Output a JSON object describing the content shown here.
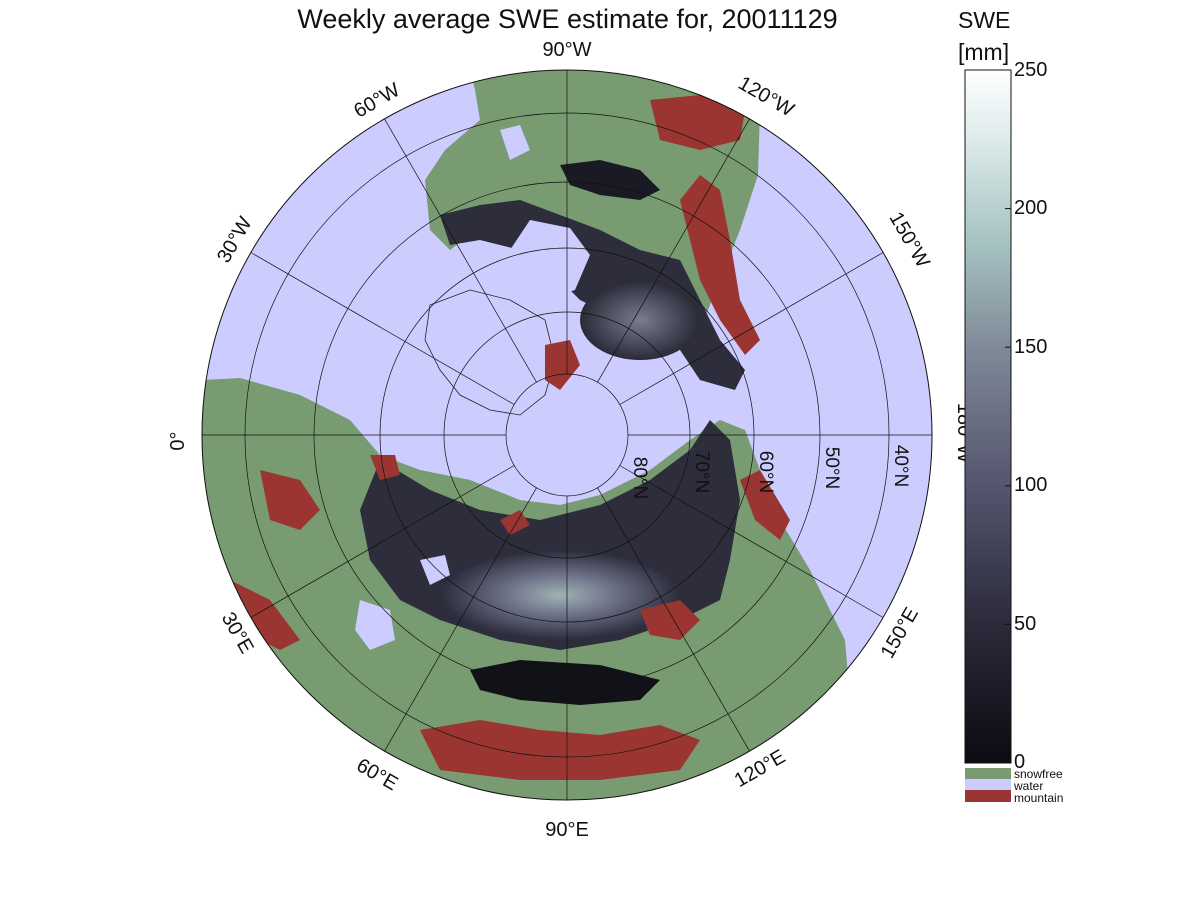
{
  "title": "Weekly average SWE estimate for, 20011129",
  "colorbar": {
    "label_line1": "SWE",
    "label_line2": "[mm]",
    "range": [
      0,
      250
    ],
    "ticks": [
      "250",
      "200",
      "150",
      "100",
      "50",
      "0"
    ],
    "gradient": [
      "#0b0b12",
      "#2a2a3a",
      "#55556e",
      "#7f8a98",
      "#a6c2c2",
      "#dcebea",
      "#ffffff"
    ],
    "categories": [
      {
        "label": "snowfree",
        "color": "#789b72"
      },
      {
        "label": "water",
        "color": "#ccccff"
      },
      {
        "label": "mountain",
        "color": "#9b3532"
      }
    ]
  },
  "map": {
    "projection": "north polar stereographic",
    "ocean_color": "#ccccff",
    "land_color": "#789b72",
    "mountain_color": "#9b3532",
    "meridian_labels": {
      "m90w": "90°W",
      "m60w": "60°W",
      "m30w": "30°W",
      "m0": "0°",
      "m30e": "30°E",
      "m60e": "60°E",
      "m90e": "90°E",
      "m120e": "120°E",
      "m150e": "150°E",
      "m180w": "180°W",
      "m150w": "150°W",
      "m120w": "120°W"
    },
    "parallel_labels": {
      "p80": "80°N",
      "p70": "70°N",
      "p60": "60°N",
      "p50": "50°N",
      "p40": "40°N"
    }
  }
}
